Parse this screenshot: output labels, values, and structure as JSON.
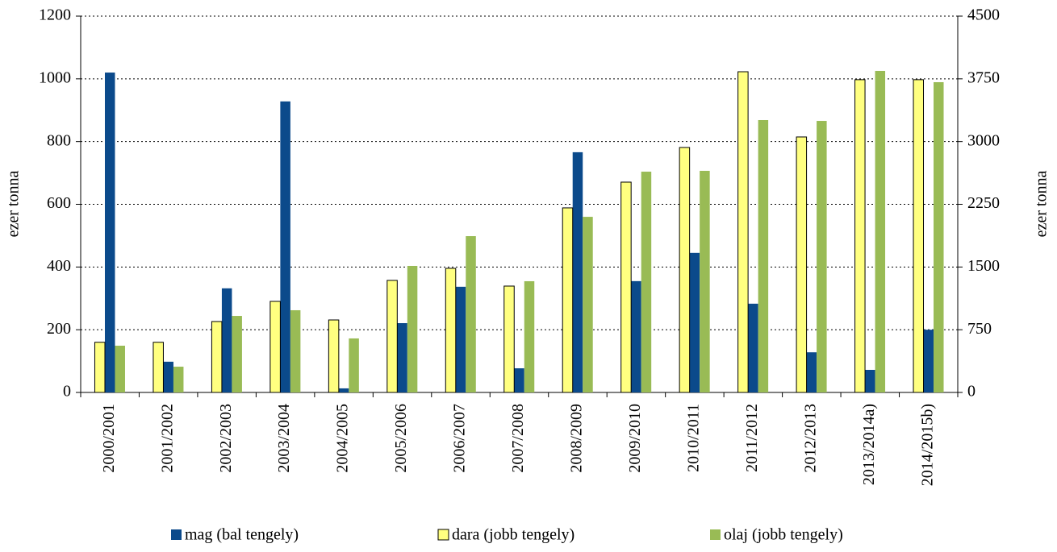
{
  "chart_data": {
    "type": "bar",
    "y_label": "ezer tonna",
    "y2_label": "ezer tonna",
    "categories": [
      "2000/2001",
      "2001/2002",
      "2002/2003",
      "2003/2004",
      "2004/2005",
      "2005/2006",
      "2006/2007",
      "2007/2008",
      "2008/2009",
      "2009/2010",
      "2010/2011",
      "2011/2012",
      "2012/2013",
      "2013/2014a)",
      "2014/2015b)"
    ],
    "series": [
      {
        "name": "mag (bal tengely)",
        "color": "#0b4a8b",
        "values": [
          1020,
          98,
          332,
          928,
          13,
          221,
          337,
          77,
          766,
          355,
          445,
          283,
          128,
          72,
          200
        ]
      },
      {
        "name": "dara (jobb tengely)",
        "color": "#ffff80",
        "axis": "y2",
        "values": [
          600,
          600,
          848,
          1089,
          867,
          1340,
          1484,
          1272,
          2207,
          2515,
          2929,
          3835,
          3055,
          3740,
          3740
        ]
      },
      {
        "name": "olaj (jobb tengely)",
        "color": "#99bb55",
        "axis": "y2",
        "values": [
          559,
          308,
          915,
          983,
          646,
          1513,
          1869,
          1330,
          2100,
          2640,
          2650,
          3257,
          3247,
          3845,
          3710
        ]
      }
    ],
    "ylim": [
      0,
      1200
    ],
    "yticks": [
      0,
      200,
      400,
      600,
      800,
      1000,
      1200
    ],
    "y2lim": [
      0,
      4500
    ],
    "y2ticks": [
      0,
      750,
      1500,
      2250,
      3000,
      3750,
      4500
    ],
    "grid": true
  }
}
